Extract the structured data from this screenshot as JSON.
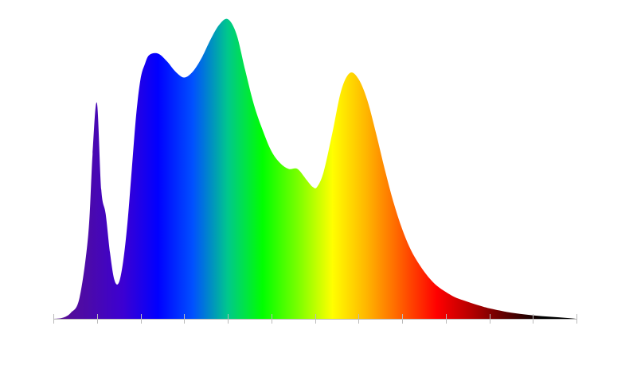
{
  "chart_data": {
    "type": "area",
    "title": "",
    "xlabel": "",
    "ylabel": "",
    "xlim": [
      0,
      12
    ],
    "ylim": [
      0,
      1.0
    ],
    "tick_count": 13,
    "tick_labels": [],
    "grid": false,
    "legend": "none",
    "series": [
      {
        "fill": "spectrum-gradient",
        "x": [
          0.0,
          0.2,
          0.4,
          0.6,
          0.8,
          0.9,
          1.0,
          1.1,
          1.2,
          1.3,
          1.4,
          1.5,
          1.6,
          1.7,
          1.8,
          1.9,
          2.0,
          2.1,
          2.2,
          2.4,
          2.6,
          2.8,
          3.0,
          3.2,
          3.4,
          3.6,
          3.8,
          4.0,
          4.2,
          4.4,
          4.6,
          4.8,
          5.0,
          5.2,
          5.4,
          5.6,
          5.8,
          5.95,
          6.05,
          6.2,
          6.4,
          6.6,
          6.8,
          7.0,
          7.2,
          7.4,
          7.6,
          7.8,
          8.0,
          8.2,
          8.4,
          8.6,
          8.8,
          9.0,
          9.2,
          9.4,
          9.6,
          9.8,
          10.0,
          10.4,
          10.8,
          11.2,
          11.6,
          12.0
        ],
        "values": [
          0.0,
          0.003,
          0.02,
          0.07,
          0.28,
          0.55,
          0.72,
          0.43,
          0.35,
          0.22,
          0.13,
          0.12,
          0.19,
          0.32,
          0.5,
          0.68,
          0.8,
          0.85,
          0.88,
          0.885,
          0.86,
          0.825,
          0.805,
          0.825,
          0.87,
          0.93,
          0.98,
          1.0,
          0.95,
          0.83,
          0.715,
          0.63,
          0.56,
          0.52,
          0.5,
          0.5,
          0.465,
          0.44,
          0.44,
          0.49,
          0.62,
          0.76,
          0.82,
          0.8,
          0.73,
          0.62,
          0.5,
          0.39,
          0.3,
          0.23,
          0.18,
          0.14,
          0.11,
          0.09,
          0.073,
          0.062,
          0.052,
          0.043,
          0.035,
          0.023,
          0.015,
          0.009,
          0.005,
          0.0
        ]
      }
    ],
    "colors": {
      "spectrum_stops": [
        "#5a0f8c",
        "#4b0aaa",
        "#3c00d2",
        "#0000ff",
        "#0050ff",
        "#00c88c",
        "#00ff00",
        "#78ff00",
        "#ffff00",
        "#ffb400",
        "#ff5a00",
        "#ff0000",
        "#b40000",
        "#5a0000",
        "#000000",
        "#000000"
      ],
      "axis": "#bbbbbb"
    }
  }
}
